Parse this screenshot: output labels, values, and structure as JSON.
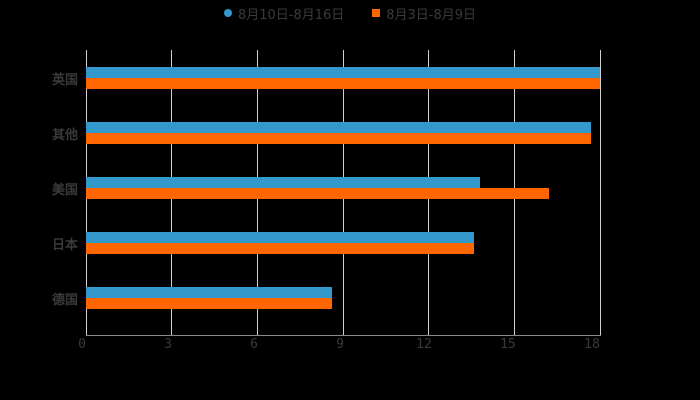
{
  "chart_data": {
    "type": "bar",
    "orientation": "horizontal",
    "title": "",
    "xlabel": "",
    "ylabel": "",
    "categories": [
      "英国",
      "其他",
      "美国",
      "日本",
      "德国"
    ],
    "series": [
      {
        "name": "8月10日-8月16日",
        "color": "#3399cc",
        "marker": "circle",
        "values": [
          18,
          17.7,
          13.8,
          13.6,
          8.6
        ]
      },
      {
        "name": "8月3日-8月9日",
        "color": "#ff6600",
        "marker": "square",
        "values": [
          18,
          17.7,
          16.2,
          13.6,
          8.6
        ]
      }
    ],
    "xlim": [
      0,
      18
    ],
    "xticks": [
      0,
      3,
      6,
      9,
      12,
      15,
      18
    ],
    "grid": true,
    "legend_position": "top"
  },
  "legend": [
    {
      "label": "8月10日-8月16日",
      "color": "#3399cc"
    },
    {
      "label": "8月3日-8月9日",
      "color": "#ff6600"
    }
  ],
  "xticks": [
    "0",
    "3",
    "6",
    "9",
    "12",
    "15",
    "18"
  ],
  "categories": [
    "英国",
    "其他",
    "美国",
    "日本",
    "德国"
  ]
}
